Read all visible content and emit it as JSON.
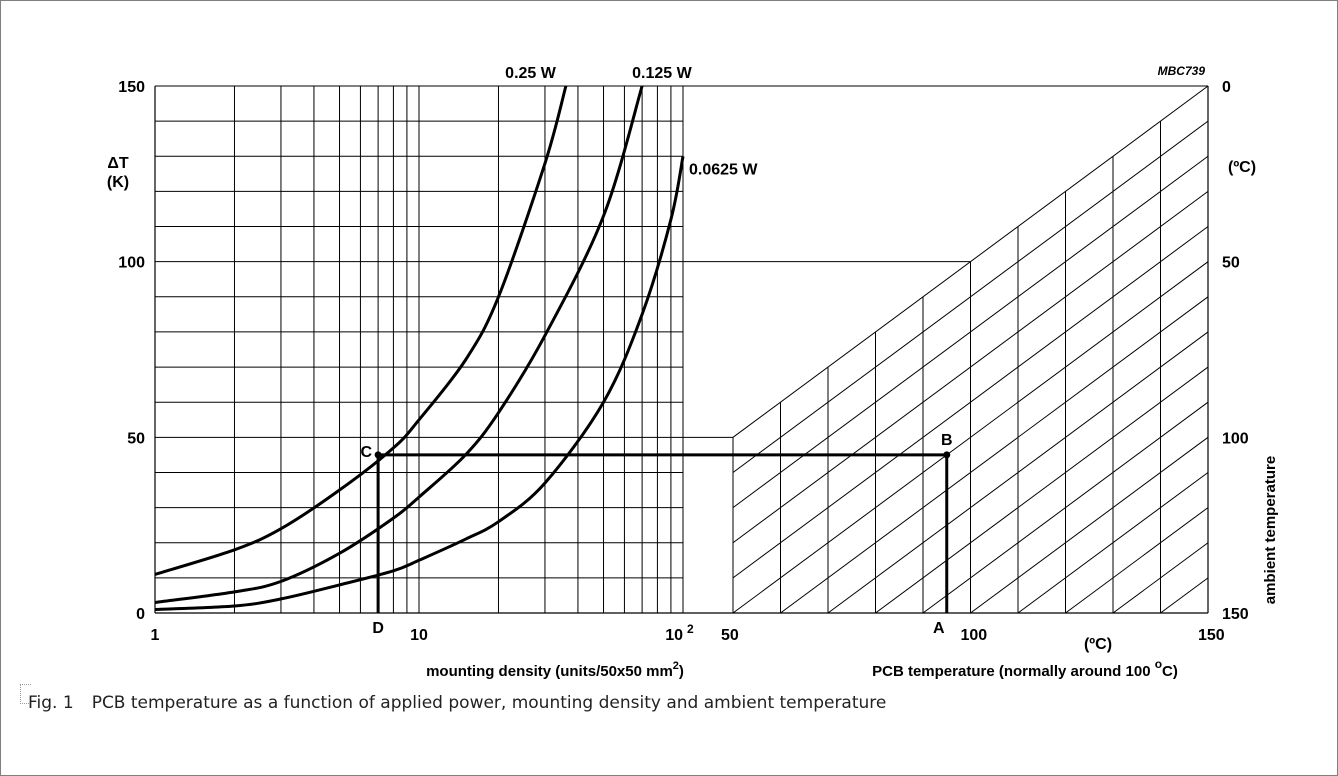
{
  "chart_data": {
    "type": "line",
    "figure_code": "MBC739",
    "left_panel": {
      "x_scale": "log",
      "x_range": [
        1,
        100
      ],
      "x_ticks": [
        {
          "value": 1,
          "label": "1"
        },
        {
          "value": 10,
          "label": "10"
        },
        {
          "value": 100,
          "label": "10",
          "sup": "2"
        }
      ],
      "x_label": "mounting density (units/50x50 mm",
      "x_label_sup": "2",
      "x_label_end": ")",
      "y_range": [
        0,
        150
      ],
      "y_ticks": [
        {
          "value": 0,
          "label": "0"
        },
        {
          "value": 50,
          "label": "50"
        },
        {
          "value": 100,
          "label": "100"
        },
        {
          "value": 150,
          "label": "150"
        }
      ],
      "y_label_line1": "ΔT",
      "y_label_line2": "(K)",
      "series": [
        {
          "name": "0.25 W",
          "points": [
            [
              1,
              11
            ],
            [
              2,
              18
            ],
            [
              3,
              24
            ],
            [
              5,
              35
            ],
            [
              8,
              47
            ],
            [
              10,
              55
            ],
            [
              15,
              72
            ],
            [
              20,
              90
            ],
            [
              30,
              128
            ],
            [
              36,
              150
            ]
          ]
        },
        {
          "name": "0.125 W",
          "points": [
            [
              1,
              3
            ],
            [
              2,
              6
            ],
            [
              3,
              9
            ],
            [
              5,
              17
            ],
            [
              8,
              27
            ],
            [
              10,
              33
            ],
            [
              15,
              45
            ],
            [
              20,
              57
            ],
            [
              30,
              79
            ],
            [
              50,
              113
            ],
            [
              70,
              150
            ]
          ]
        },
        {
          "name": "0.0625 W",
          "points": [
            [
              1,
              1
            ],
            [
              2,
              2
            ],
            [
              3,
              4
            ],
            [
              5,
              8
            ],
            [
              8,
              12
            ],
            [
              10,
              15
            ],
            [
              15,
              21
            ],
            [
              20,
              26
            ],
            [
              30,
              37
            ],
            [
              50,
              60
            ],
            [
              70,
              85
            ],
            [
              90,
              112
            ],
            [
              100,
              130
            ]
          ]
        }
      ]
    },
    "right_panel": {
      "x_range": [
        50,
        150
      ],
      "x_ticks": [
        {
          "value": 50,
          "label": "50"
        },
        {
          "value": 100,
          "label": "100"
        },
        {
          "value": 150,
          "label": "150"
        }
      ],
      "x_unit": "(ºC)",
      "x_label": "PCB temperature (normally around 100 ",
      "x_label_deg": "o",
      "x_label_end": "C)",
      "right_axis_ticks": [
        {
          "value": 0,
          "label": "0"
        },
        {
          "value": 50,
          "label": "50"
        },
        {
          "value": 100,
          "label": "100"
        },
        {
          "value": 150,
          "label": "150"
        }
      ],
      "right_axis_unit": "(ºC)",
      "right_axis_label": "ambient temperature"
    },
    "example_path": {
      "points": [
        {
          "label": "D",
          "density": 7,
          "dT": 0
        },
        {
          "label": "C",
          "density": 7,
          "dT": 45
        },
        {
          "label": "B",
          "pcb_temp": 95,
          "dT": 45
        },
        {
          "label": "A",
          "pcb_temp": 95,
          "dT": 0
        }
      ]
    }
  },
  "caption": {
    "number": "Fig. 1",
    "text": "PCB temperature as a function of applied power, mounting density and ambient temperature"
  }
}
